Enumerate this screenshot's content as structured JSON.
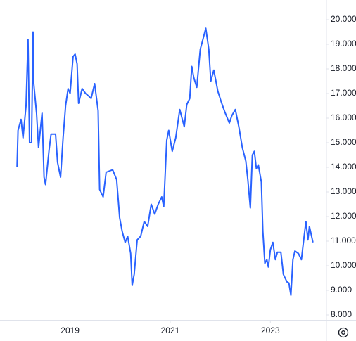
{
  "chart_data": {
    "type": "line",
    "x": [
      2017.94,
      2017.96,
      2018.02,
      2018.06,
      2018.12,
      2018.16,
      2018.19,
      2018.23,
      2018.26,
      2018.27,
      2018.33,
      2018.37,
      2018.44,
      2018.48,
      2018.51,
      2018.58,
      2018.62,
      2018.71,
      2018.75,
      2018.81,
      2018.86,
      2018.91,
      2018.96,
      2019.0,
      2019.06,
      2019.1,
      2019.14,
      2019.17,
      2019.24,
      2019.31,
      2019.37,
      2019.42,
      2019.49,
      2019.56,
      2019.59,
      2019.66,
      2019.72,
      2019.85,
      2019.93,
      2019.99,
      2020.04,
      2020.1,
      2020.15,
      2020.21,
      2020.24,
      2020.28,
      2020.34,
      2020.41,
      2020.48,
      2020.55,
      2020.62,
      2020.69,
      2020.76,
      2020.83,
      2020.87,
      2020.93,
      2020.97,
      2021.04,
      2021.11,
      2021.19,
      2021.28,
      2021.33,
      2021.39,
      2021.43,
      2021.47,
      2021.53,
      2021.6,
      2021.64,
      2021.71,
      2021.77,
      2021.81,
      2021.87,
      2021.95,
      2022.02,
      2022.09,
      2022.18,
      2022.23,
      2022.3,
      2022.37,
      2022.44,
      2022.51,
      2022.55,
      2022.6,
      2022.64,
      2022.68,
      2022.72,
      2022.76,
      2022.82,
      2022.85,
      2022.89,
      2022.93,
      2022.96,
      2023.0,
      2023.05,
      2023.1,
      2023.14,
      2023.21,
      2023.26,
      2023.33,
      2023.37,
      2023.41,
      2023.45,
      2023.49,
      2023.56,
      2023.62,
      2023.66,
      2023.71,
      2023.75,
      2023.78,
      2023.85
    ],
    "series": [
      {
        "color": "#2962ff",
        "values": [
          14.0,
          15.5,
          15.95,
          15.2,
          16.5,
          19.2,
          15.0,
          15.0,
          19.5,
          17.5,
          16.2,
          14.8,
          16.2,
          13.6,
          13.3,
          14.7,
          15.35,
          15.35,
          14.2,
          13.6,
          15.2,
          16.5,
          17.2,
          17.0,
          18.5,
          18.6,
          18.2,
          16.6,
          17.2,
          17.0,
          16.9,
          16.8,
          17.4,
          16.3,
          13.1,
          12.8,
          13.8,
          13.9,
          13.5,
          11.95,
          11.4,
          10.95,
          11.2,
          10.5,
          9.2,
          9.65,
          11.05,
          11.2,
          11.8,
          11.6,
          12.5,
          12.1,
          12.5,
          12.8,
          12.4,
          15.1,
          15.5,
          14.65,
          15.2,
          16.35,
          15.65,
          16.55,
          16.8,
          18.1,
          17.65,
          17.25,
          18.8,
          19.1,
          19.65,
          18.8,
          17.5,
          17.95,
          17.1,
          16.65,
          16.25,
          15.8,
          16.1,
          16.35,
          15.65,
          14.8,
          14.25,
          13.5,
          12.35,
          14.5,
          14.65,
          13.95,
          14.1,
          13.4,
          11.4,
          10.1,
          10.25,
          9.95,
          10.65,
          10.95,
          10.25,
          10.55,
          10.55,
          9.65,
          9.35,
          9.3,
          8.8,
          10.25,
          10.6,
          10.5,
          10.25,
          10.95,
          11.8,
          11.05,
          11.6,
          10.95
        ]
      }
    ],
    "xlim": [
      2017.6,
      2024.12
    ],
    "xticks": [
      2019,
      2021,
      2023
    ],
    "ylim": [
      7.8,
      20.8
    ],
    "yticks": [
      {
        "value": 8,
        "label": "8.000"
      },
      {
        "value": 9,
        "label": "9.000"
      },
      {
        "value": 10,
        "label": "10.000"
      },
      {
        "value": 11,
        "label": "11.000"
      },
      {
        "value": 12,
        "label": "12.000"
      },
      {
        "value": 13,
        "label": "13.000"
      },
      {
        "value": 14,
        "label": "14.000"
      },
      {
        "value": 15,
        "label": "15.000"
      },
      {
        "value": 16,
        "label": "16.000"
      },
      {
        "value": 17,
        "label": "17.000"
      },
      {
        "value": 18,
        "label": "18.000"
      },
      {
        "value": 19,
        "label": "19.000"
      },
      {
        "value": 20,
        "label": "20.000"
      }
    ],
    "grid": false
  }
}
